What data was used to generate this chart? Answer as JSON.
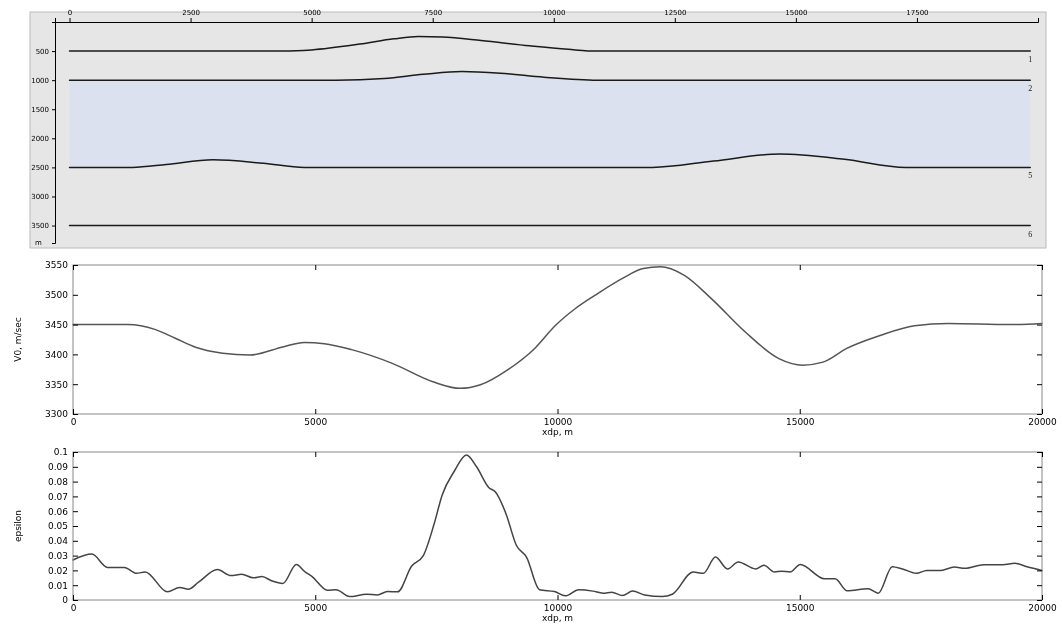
{
  "chart_data": [
    {
      "type": "line",
      "annotations": [
        "m"
      ],
      "xlim": [
        -300,
        20000
      ],
      "ylim": [
        3800,
        0
      ],
      "xticks": [
        0,
        2500,
        5000,
        7500,
        10000,
        12500,
        15000,
        17500
      ],
      "yticks": [
        500,
        1000,
        1500,
        2000,
        2500,
        3000,
        3500
      ],
      "series": [
        {
          "name": "1",
          "color": "#1a1a1a",
          "x": [
            0,
            4400,
            5000,
            6000,
            6700,
            7200,
            7700,
            8500,
            9500,
            10300,
            10900,
            19840
          ],
          "values": [
            500,
            500,
            480,
            380,
            290,
            250,
            260,
            320,
            410,
            470,
            500,
            500
          ]
        },
        {
          "name": "2",
          "color": "#1a1a1a",
          "x": [
            0,
            1300,
            2000,
            2960,
            4000,
            4850,
            5500,
            6500,
            7300,
            8100,
            8900,
            9800,
            10900,
            12040,
            13300,
            14670,
            16000,
            17270,
            19840
          ],
          "values": [
            1000,
            1000,
            1000,
            1000,
            1000,
            1000,
            1000,
            970,
            900,
            850,
            880,
            950,
            1000,
            1000,
            1000,
            1000,
            1000,
            1000,
            1000
          ],
          "lower": [
            1000,
            1000,
            1000,
            1000,
            1000,
            1000,
            1000,
            970,
            900,
            850,
            880,
            950,
            1000,
            1000,
            1000,
            1000,
            1000,
            1000,
            1000
          ],
          "upper": [
            2500,
            2500,
            2450,
            2370,
            2430,
            2500,
            2500,
            2500,
            2500,
            2500,
            2500,
            2500,
            2500,
            2500,
            2390,
            2270,
            2360,
            2500,
            2500
          ]
        },
        {
          "name": "5",
          "color": "#1a1a1a",
          "x": [
            0,
            1300,
            2000,
            2960,
            4000,
            4850,
            5500,
            12040,
            13300,
            14670,
            16000,
            17270,
            19840
          ],
          "values": [
            2500,
            2500,
            2450,
            2370,
            2430,
            2500,
            2500,
            2500,
            2390,
            2270,
            2360,
            2500,
            2500
          ]
        },
        {
          "name": "6",
          "color": "#1a1a1a",
          "x": [
            0,
            19840
          ],
          "values": [
            3500,
            3500
          ]
        }
      ]
    },
    {
      "type": "line",
      "xlabel": "xdp, m",
      "ylabel": "V0, m/sec",
      "xlim": [
        0,
        20000
      ],
      "ylim": [
        3300,
        3550
      ],
      "xticks": [
        0,
        5000,
        10000,
        15000,
        20000
      ],
      "yticks": [
        3300,
        3350,
        3400,
        3450,
        3500,
        3550
      ],
      "series": [
        {
          "color": "#555555",
          "x": [
            0,
            1130,
            1690,
            2110,
            2530,
            3090,
            3650,
            4350,
            4770,
            5190,
            5750,
            6590,
            7430,
            7990,
            8410,
            8970,
            9530,
            9950,
            10370,
            10790,
            11350,
            11770,
            12120,
            12610,
            13170,
            13870,
            14570,
            15060,
            15480,
            15970,
            16670,
            17370,
            18070,
            19330,
            20000
          ],
          "values": [
            3450,
            3450,
            3442,
            3427,
            3412,
            3402,
            3399,
            3413,
            3420,
            3418,
            3408,
            3385,
            3354,
            3343,
            3349,
            3374,
            3410,
            3448,
            3477,
            3500,
            3528,
            3544,
            3547,
            3533,
            3494,
            3438,
            3393,
            3382,
            3387,
            3410,
            3432,
            3448,
            3452,
            3450,
            3452
          ]
        }
      ]
    },
    {
      "type": "line",
      "xlabel": "xdp, m",
      "ylabel": "epsilon",
      "xlim": [
        0,
        20000
      ],
      "ylim": [
        0,
        0.1
      ],
      "xticks": [
        0,
        5000,
        10000,
        15000,
        20000
      ],
      "yticks": [
        0,
        0.01,
        0.02,
        0.03,
        0.04,
        0.05,
        0.06,
        0.07,
        0.08,
        0.09,
        0.1
      ],
      "series": [
        {
          "color": "#444444",
          "x": [
            0,
            390,
            710,
            1060,
            1310,
            1490,
            1950,
            2200,
            2380,
            2590,
            2980,
            3260,
            3480,
            3720,
            3900,
            4110,
            4330,
            4610,
            4790,
            4930,
            5250,
            5430,
            5710,
            6060,
            6280,
            6490,
            6700,
            6990,
            7230,
            7450,
            7620,
            7870,
            8120,
            8330,
            8580,
            8720,
            8940,
            9150,
            9360,
            9630,
            9940,
            10160,
            10440,
            10730,
            10940,
            11120,
            11340,
            11550,
            11800,
            12160,
            12370,
            12800,
            13010,
            13260,
            13510,
            13730,
            14090,
            14260,
            14480,
            14620,
            14800,
            15010,
            15510,
            15730,
            15980,
            16410,
            16620,
            16910,
            17120,
            17410,
            17620,
            17910,
            18190,
            18410,
            18800,
            19190,
            19440,
            19690,
            20000
          ],
          "values": [
            0.027,
            0.031,
            0.022,
            0.022,
            0.018,
            0.019,
            0.0055,
            0.0085,
            0.0073,
            0.012,
            0.0206,
            0.0165,
            0.0174,
            0.015,
            0.0158,
            0.0128,
            0.0112,
            0.024,
            0.019,
            0.016,
            0.0066,
            0.0069,
            0.0023,
            0.0039,
            0.0034,
            0.0057,
            0.0055,
            0.023,
            0.03,
            0.051,
            0.071,
            0.087,
            0.098,
            0.09,
            0.076,
            0.073,
            0.058,
            0.037,
            0.029,
            0.0069,
            0.0057,
            0.0028,
            0.0069,
            0.006,
            0.0046,
            0.0053,
            0.003,
            0.006,
            0.0034,
            0.0023,
            0.0039,
            0.0189,
            0.018,
            0.029,
            0.021,
            0.0257,
            0.021,
            0.0234,
            0.0189,
            0.0195,
            0.0189,
            0.024,
            0.0143,
            0.0143,
            0.0062,
            0.0076,
            0.0046,
            0.0225,
            0.021,
            0.018,
            0.02,
            0.02,
            0.0223,
            0.0214,
            0.0239,
            0.0239,
            0.0248,
            0.0225,
            0.02
          ]
        }
      ]
    }
  ]
}
